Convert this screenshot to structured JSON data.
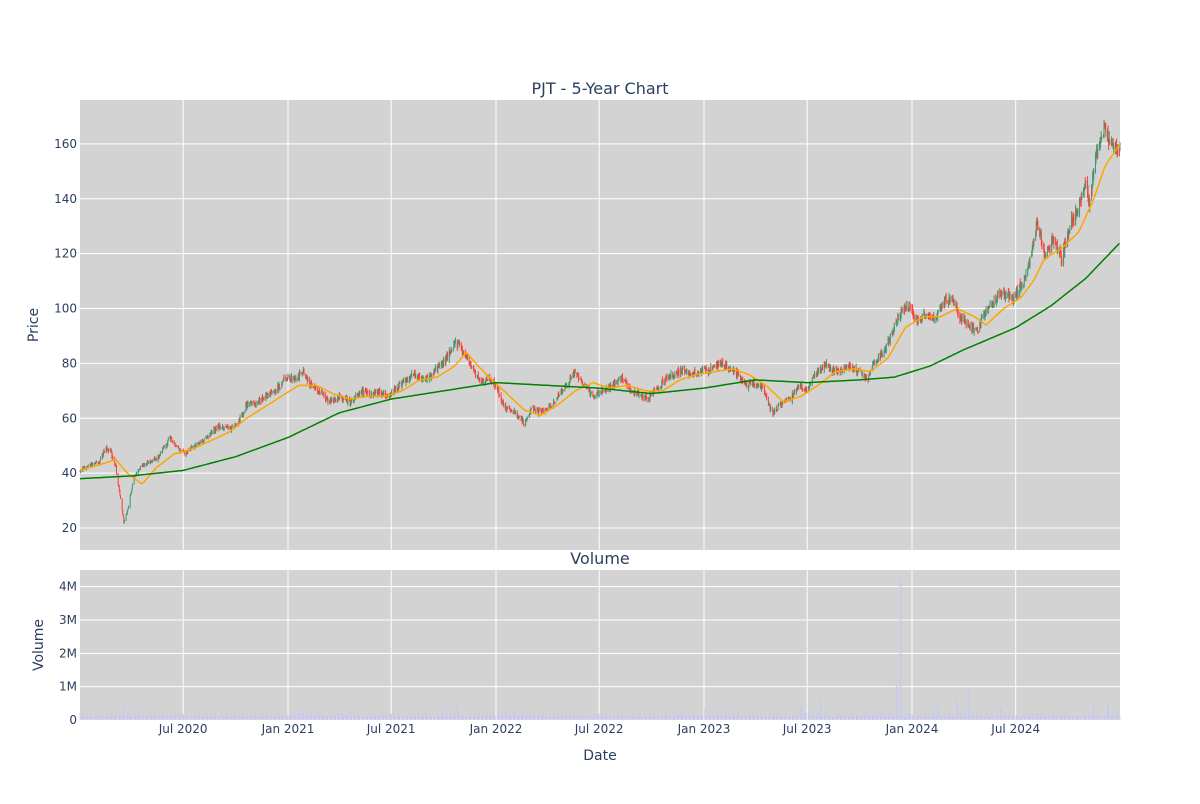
{
  "chart_data": [
    {
      "type": "candlestick",
      "title": "PJT - 5-Year Chart",
      "xlabel": "",
      "ylabel": "Price",
      "ylim": [
        12,
        176
      ],
      "yticks": [
        20,
        40,
        60,
        80,
        100,
        120,
        140,
        160
      ],
      "xlim": [
        "2020-01-02",
        "2024-12-31"
      ],
      "grid": true,
      "colors": {
        "background": "#d3d3d3",
        "increasing": "#3d9970",
        "decreasing": "#ff4136",
        "ma_short": "#ffa500",
        "ma_long": "#008000"
      },
      "price_points": [
        [
          "2020-01-02",
          41
        ],
        [
          "2020-01-20",
          43
        ],
        [
          "2020-02-05",
          44
        ],
        [
          "2020-02-15",
          49
        ],
        [
          "2020-02-25",
          48
        ],
        [
          "2020-03-05",
          42
        ],
        [
          "2020-03-12",
          32
        ],
        [
          "2020-03-19",
          22
        ],
        [
          "2020-03-26",
          27
        ],
        [
          "2020-04-05",
          38
        ],
        [
          "2020-04-20",
          43
        ],
        [
          "2020-05-05",
          44
        ],
        [
          "2020-05-20",
          46
        ],
        [
          "2020-06-08",
          53
        ],
        [
          "2020-06-20",
          49
        ],
        [
          "2020-07-05",
          47
        ],
        [
          "2020-07-20",
          50
        ],
        [
          "2020-08-10",
          53
        ],
        [
          "2020-09-01",
          57
        ],
        [
          "2020-09-20",
          56
        ],
        [
          "2020-10-05",
          58
        ],
        [
          "2020-10-20",
          65
        ],
        [
          "2020-11-10",
          66
        ],
        [
          "2020-11-25",
          68
        ],
        [
          "2020-12-10",
          70
        ],
        [
          "2020-12-25",
          74
        ],
        [
          "2021-01-15",
          75
        ],
        [
          "2021-01-28",
          77
        ],
        [
          "2021-02-10",
          72
        ],
        [
          "2021-02-25",
          70
        ],
        [
          "2021-03-15",
          66
        ],
        [
          "2021-04-01",
          68
        ],
        [
          "2021-04-20",
          66
        ],
        [
          "2021-05-10",
          70
        ],
        [
          "2021-05-25",
          68
        ],
        [
          "2021-06-10",
          70
        ],
        [
          "2021-06-25",
          68
        ],
        [
          "2021-07-10",
          71
        ],
        [
          "2021-07-25",
          74
        ],
        [
          "2021-08-10",
          76
        ],
        [
          "2021-08-25",
          74
        ],
        [
          "2021-09-10",
          76
        ],
        [
          "2021-09-25",
          79
        ],
        [
          "2021-10-10",
          83
        ],
        [
          "2021-10-22",
          88
        ],
        [
          "2021-11-05",
          84
        ],
        [
          "2021-11-20",
          78
        ],
        [
          "2021-12-05",
          73
        ],
        [
          "2021-12-20",
          75
        ],
        [
          "2022-01-05",
          70
        ],
        [
          "2022-01-15",
          64
        ],
        [
          "2022-02-01",
          63
        ],
        [
          "2022-02-20",
          58
        ],
        [
          "2022-03-05",
          64
        ],
        [
          "2022-03-20",
          62
        ],
        [
          "2022-04-05",
          64
        ],
        [
          "2022-04-20",
          68
        ],
        [
          "2022-05-05",
          72
        ],
        [
          "2022-05-20",
          77
        ],
        [
          "2022-06-05",
          72
        ],
        [
          "2022-06-20",
          68
        ],
        [
          "2022-07-05",
          70
        ],
        [
          "2022-07-25",
          72
        ],
        [
          "2022-08-10",
          75
        ],
        [
          "2022-08-25",
          70
        ],
        [
          "2022-09-10",
          68
        ],
        [
          "2022-09-25",
          67
        ],
        [
          "2022-10-10",
          71
        ],
        [
          "2022-10-25",
          74
        ],
        [
          "2022-11-10",
          76
        ],
        [
          "2022-11-25",
          78
        ],
        [
          "2022-12-10",
          76
        ],
        [
          "2022-12-25",
          77
        ],
        [
          "2023-01-15",
          78
        ],
        [
          "2023-02-01",
          80
        ],
        [
          "2023-02-15",
          78
        ],
        [
          "2023-03-01",
          76
        ],
        [
          "2023-03-15",
          72
        ],
        [
          "2023-04-01",
          73
        ],
        [
          "2023-04-15",
          70
        ],
        [
          "2023-05-01",
          62
        ],
        [
          "2023-05-15",
          65
        ],
        [
          "2023-06-01",
          67
        ],
        [
          "2023-06-15",
          72
        ],
        [
          "2023-07-01",
          70
        ],
        [
          "2023-07-15",
          76
        ],
        [
          "2023-08-01",
          80
        ],
        [
          "2023-08-15",
          77
        ],
        [
          "2023-09-01",
          78
        ],
        [
          "2023-09-15",
          79
        ],
        [
          "2023-10-01",
          77
        ],
        [
          "2023-10-15",
          74
        ],
        [
          "2023-10-25",
          80
        ],
        [
          "2023-11-10",
          84
        ],
        [
          "2023-11-25",
          90
        ],
        [
          "2023-12-10",
          98
        ],
        [
          "2023-12-25",
          101
        ],
        [
          "2024-01-10",
          95
        ],
        [
          "2024-01-25",
          98
        ],
        [
          "2024-02-10",
          96
        ],
        [
          "2024-02-25",
          102
        ],
        [
          "2024-03-10",
          104
        ],
        [
          "2024-03-25",
          97
        ],
        [
          "2024-04-10",
          94
        ],
        [
          "2024-04-25",
          91
        ],
        [
          "2024-05-10",
          100
        ],
        [
          "2024-05-25",
          103
        ],
        [
          "2024-06-10",
          106
        ],
        [
          "2024-06-25",
          103
        ],
        [
          "2024-07-10",
          108
        ],
        [
          "2024-07-20",
          112
        ],
        [
          "2024-08-01",
          125
        ],
        [
          "2024-08-08",
          132
        ],
        [
          "2024-08-20",
          120
        ],
        [
          "2024-09-05",
          125
        ],
        [
          "2024-09-20",
          118
        ],
        [
          "2024-10-05",
          131
        ],
        [
          "2024-10-20",
          137
        ],
        [
          "2024-10-30",
          146
        ],
        [
          "2024-11-08",
          138
        ],
        [
          "2024-11-15",
          150
        ],
        [
          "2024-11-25",
          162
        ],
        [
          "2024-12-05",
          165
        ],
        [
          "2024-12-15",
          160
        ],
        [
          "2024-12-31",
          158
        ]
      ],
      "ma_short_points": [
        [
          "2020-01-02",
          41
        ],
        [
          "2020-02-20",
          44
        ],
        [
          "2020-03-05",
          45
        ],
        [
          "2020-03-25",
          40
        ],
        [
          "2020-04-20",
          36
        ],
        [
          "2020-05-15",
          42
        ],
        [
          "2020-06-15",
          47
        ],
        [
          "2020-07-20",
          49
        ],
        [
          "2020-08-20",
          52
        ],
        [
          "2020-09-20",
          55
        ],
        [
          "2020-10-20",
          60
        ],
        [
          "2020-11-20",
          64
        ],
        [
          "2020-12-20",
          68
        ],
        [
          "2021-01-20",
          72
        ],
        [
          "2021-02-20",
          72
        ],
        [
          "2021-03-20",
          69
        ],
        [
          "2021-04-20",
          67
        ],
        [
          "2021-05-20",
          68
        ],
        [
          "2021-06-20",
          68
        ],
        [
          "2021-07-20",
          70
        ],
        [
          "2021-08-20",
          74
        ],
        [
          "2021-09-20",
          75
        ],
        [
          "2021-10-20",
          79
        ],
        [
          "2021-11-10",
          84
        ],
        [
          "2021-12-01",
          79
        ],
        [
          "2021-12-25",
          74
        ],
        [
          "2022-01-20",
          69
        ],
        [
          "2022-02-20",
          63
        ],
        [
          "2022-03-20",
          61
        ],
        [
          "2022-04-20",
          65
        ],
        [
          "2022-05-20",
          70
        ],
        [
          "2022-06-20",
          73
        ],
        [
          "2022-07-20",
          71
        ],
        [
          "2022-08-20",
          72
        ],
        [
          "2022-09-20",
          70
        ],
        [
          "2022-10-20",
          70
        ],
        [
          "2022-11-20",
          74
        ],
        [
          "2022-12-20",
          76
        ],
        [
          "2023-01-20",
          77
        ],
        [
          "2023-02-20",
          78
        ],
        [
          "2023-03-20",
          76
        ],
        [
          "2023-04-20",
          72
        ],
        [
          "2023-05-20",
          66
        ],
        [
          "2023-06-20",
          68
        ],
        [
          "2023-07-20",
          72
        ],
        [
          "2023-08-20",
          77
        ],
        [
          "2023-09-20",
          78
        ],
        [
          "2023-10-20",
          77
        ],
        [
          "2023-11-20",
          82
        ],
        [
          "2023-12-20",
          93
        ],
        [
          "2024-01-20",
          97
        ],
        [
          "2024-02-20",
          97
        ],
        [
          "2024-03-20",
          100
        ],
        [
          "2024-04-20",
          97
        ],
        [
          "2024-05-10",
          94
        ],
        [
          "2024-06-10",
          100
        ],
        [
          "2024-07-10",
          104
        ],
        [
          "2024-08-01",
          110
        ],
        [
          "2024-08-20",
          118
        ],
        [
          "2024-09-20",
          122
        ],
        [
          "2024-10-20",
          128
        ],
        [
          "2024-11-15",
          140
        ],
        [
          "2024-12-05",
          152
        ],
        [
          "2024-12-31",
          160
        ]
      ],
      "ma_long_points": [
        [
          "2020-01-02",
          38
        ],
        [
          "2020-04-01",
          39
        ],
        [
          "2020-07-01",
          41
        ],
        [
          "2020-10-01",
          46
        ],
        [
          "2021-01-01",
          53
        ],
        [
          "2021-04-01",
          62
        ],
        [
          "2021-07-01",
          67
        ],
        [
          "2021-10-01",
          70
        ],
        [
          "2022-01-01",
          73
        ],
        [
          "2022-04-01",
          72
        ],
        [
          "2022-07-01",
          71
        ],
        [
          "2022-10-01",
          69
        ],
        [
          "2023-01-01",
          71
        ],
        [
          "2023-04-01",
          74
        ],
        [
          "2023-07-01",
          73
        ],
        [
          "2023-10-01",
          74
        ],
        [
          "2023-12-01",
          75
        ],
        [
          "2024-02-01",
          79
        ],
        [
          "2024-04-01",
          85
        ],
        [
          "2024-07-01",
          93
        ],
        [
          "2024-09-01",
          101
        ],
        [
          "2024-11-01",
          111
        ],
        [
          "2024-12-31",
          124
        ]
      ]
    },
    {
      "type": "bar",
      "title": "Volume",
      "xlabel": "Date",
      "ylabel": "Volume",
      "ylim": [
        0,
        4500000
      ],
      "yticks": [
        0,
        1000000,
        2000000,
        3000000,
        4000000
      ],
      "ytick_labels": [
        "0",
        "1M",
        "2M",
        "3M",
        "4M"
      ],
      "xticks": [
        "2020-07-01",
        "2021-01-01",
        "2021-07-01",
        "2022-01-01",
        "2022-07-01",
        "2023-01-01",
        "2023-07-01",
        "2024-01-01",
        "2024-07-01"
      ],
      "xtick_labels": [
        "Jul 2020",
        "Jan 2021",
        "Jul 2021",
        "Jan 2022",
        "Jul 2022",
        "Jan 2023",
        "Jul 2023",
        "Jan 2024",
        "Jul 2024"
      ],
      "colors": {
        "background": "#d3d3d3",
        "bar": "#c8c8f0"
      },
      "volume_spikes": [
        [
          "2020-03-20",
          500000
        ],
        [
          "2020-03-27",
          400000
        ],
        [
          "2021-01-20",
          350000
        ],
        [
          "2021-10-25",
          600000
        ],
        [
          "2023-06-20",
          400000
        ],
        [
          "2023-07-25",
          650000
        ],
        [
          "2023-12-05",
          1050000
        ],
        [
          "2023-12-12",
          4250000
        ],
        [
          "2024-02-15",
          500000
        ],
        [
          "2024-03-20",
          600000
        ],
        [
          "2024-04-10",
          950000
        ],
        [
          "2024-06-05",
          400000
        ],
        [
          "2024-11-15",
          500000
        ],
        [
          "2024-12-10",
          450000
        ]
      ],
      "volume_baseline": 150000
    }
  ]
}
